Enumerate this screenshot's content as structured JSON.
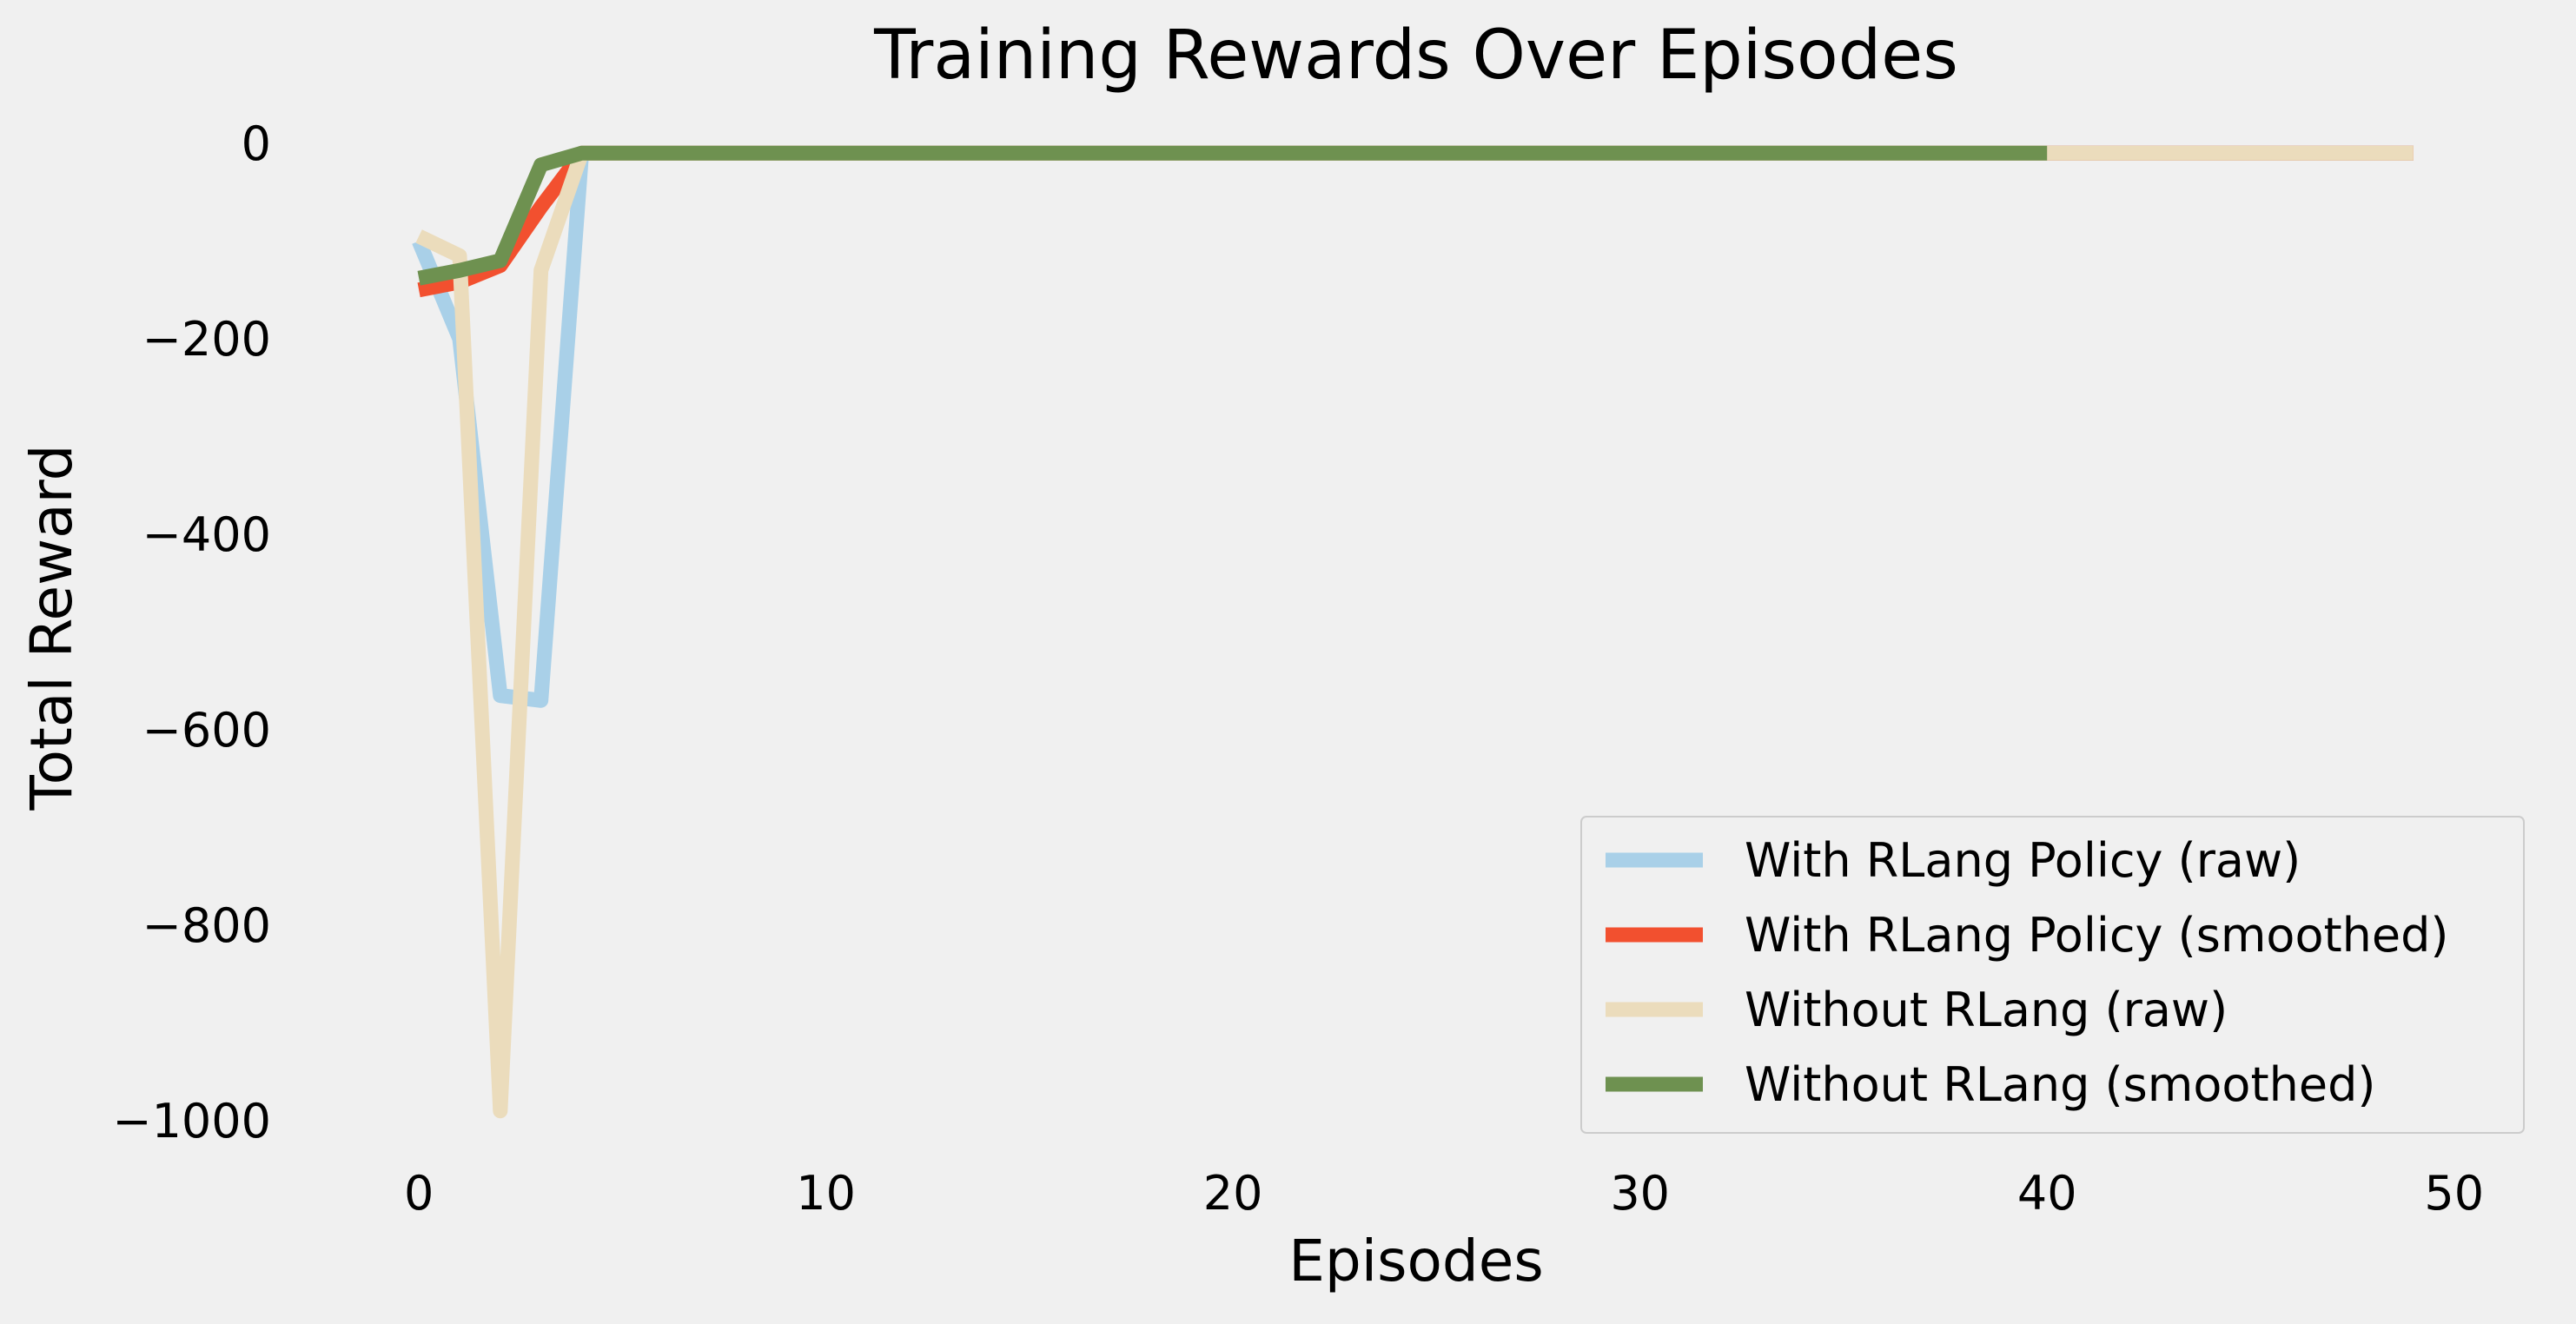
{
  "chart_data": {
    "type": "line",
    "title": "Training Rewards Over Episodes",
    "xlabel": "Episodes",
    "ylabel": "Total Reward",
    "xlim": [
      -2.5,
      51.5
    ],
    "ylim": [
      -1040,
      40
    ],
    "xticks": [
      0,
      10,
      20,
      30,
      40,
      50
    ],
    "yticks": [
      0,
      -200,
      -400,
      -600,
      -800,
      -1000
    ],
    "xtick_labels": [
      "0",
      "10",
      "20",
      "30",
      "40",
      "50"
    ],
    "ytick_labels": [
      "0",
      "−200",
      "−400",
      "−600",
      "−800",
      "−1000"
    ],
    "grid": false,
    "legend_position": "lower-right",
    "series": [
      {
        "name": "With RLang Policy (raw)",
        "color": "#a9d0e8",
        "points": [
          [
            0,
            -100
          ],
          [
            1,
            -200
          ],
          [
            2,
            -565
          ],
          [
            3,
            -570
          ],
          [
            4,
            -10
          ],
          [
            49,
            -10
          ]
        ]
      },
      {
        "name": "With RLang Policy (smoothed)",
        "color": "#f2502f",
        "points": [
          [
            0,
            -150
          ],
          [
            1,
            -142
          ],
          [
            2,
            -125
          ],
          [
            3,
            -65
          ],
          [
            4,
            -10
          ],
          [
            49,
            -10
          ]
        ]
      },
      {
        "name": "Without RLang (raw)",
        "color": "#ebdcbc",
        "points": [
          [
            0,
            -95
          ],
          [
            1,
            -115
          ],
          [
            2,
            -990
          ],
          [
            3,
            -130
          ],
          [
            4,
            -10
          ],
          [
            49,
            -10
          ]
        ]
      },
      {
        "name": "Without RLang (smoothed)",
        "color": "#6e9150",
        "points": [
          [
            0,
            -138
          ],
          [
            1,
            -130
          ],
          [
            2,
            -120
          ],
          [
            3,
            -22
          ],
          [
            4,
            -10
          ],
          [
            40,
            -10
          ]
        ]
      }
    ],
    "faded_segment": {
      "color": "#bdcbb3",
      "points": [
        [
          40,
          -10
        ],
        [
          49,
          -10
        ]
      ]
    }
  }
}
